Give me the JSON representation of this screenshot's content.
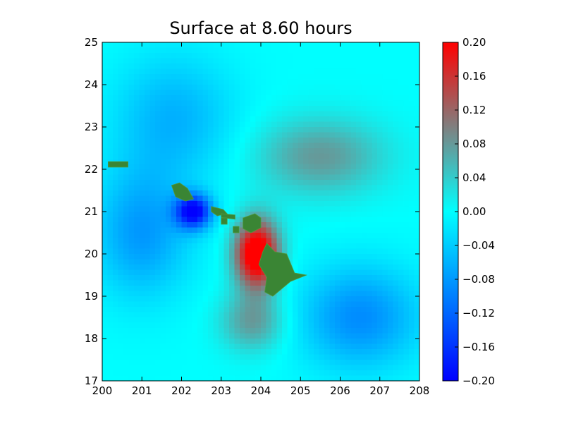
{
  "chart_data": {
    "type": "heatmap",
    "title": "Surface at 8.60 hours",
    "xlabel": "",
    "ylabel": "",
    "xlim": [
      200,
      208
    ],
    "ylim": [
      17,
      25
    ],
    "x_ticks": [
      "200",
      "201",
      "202",
      "203",
      "204",
      "205",
      "206",
      "207",
      "208"
    ],
    "y_ticks": [
      "17",
      "18",
      "19",
      "20",
      "21",
      "22",
      "23",
      "24",
      "25"
    ],
    "colorbar": {
      "min": -0.2,
      "max": 0.2,
      "ticks": [
        "−0.20",
        "−0.16",
        "−0.12",
        "−0.08",
        "−0.04",
        "0.00",
        "0.04",
        "0.08",
        "0.12",
        "0.16",
        "0.20"
      ],
      "colors": [
        "#0000ff",
        "#00ffff",
        "#ff0000"
      ]
    },
    "land_color": "#3a8534",
    "features": [
      {
        "name": "positive-peak",
        "x": 203.9,
        "y": 20.0,
        "sx": 0.55,
        "sy": 0.8,
        "amp": 0.25
      },
      {
        "name": "positive-ne-lobe",
        "x": 205.5,
        "y": 22.3,
        "sx": 1.6,
        "sy": 0.9,
        "amp": 0.08
      },
      {
        "name": "positive-s-lobe",
        "x": 203.8,
        "y": 18.4,
        "sx": 0.8,
        "sy": 0.7,
        "amp": 0.08
      },
      {
        "name": "negative-peak",
        "x": 202.3,
        "y": 21.0,
        "sx": 0.45,
        "sy": 0.4,
        "amp": -0.2
      },
      {
        "name": "negative-w-lobe",
        "x": 201.0,
        "y": 20.5,
        "sx": 1.2,
        "sy": 1.5,
        "amp": -0.08
      },
      {
        "name": "negative-se-lobe",
        "x": 206.5,
        "y": 18.5,
        "sx": 1.5,
        "sy": 1.2,
        "amp": -0.09
      },
      {
        "name": "negative-n-lobe",
        "x": 201.8,
        "y": 23.2,
        "sx": 1.5,
        "sy": 1.5,
        "amp": -0.06
      }
    ],
    "islands": [
      {
        "name": "niihau",
        "points": [
          [
            200.15,
            22.18
          ],
          [
            200.65,
            22.18
          ],
          [
            200.65,
            22.05
          ],
          [
            200.15,
            22.05
          ]
        ]
      },
      {
        "name": "kauai",
        "points": [
          [
            201.75,
            21.62
          ],
          [
            201.95,
            21.68
          ],
          [
            202.15,
            21.55
          ],
          [
            202.3,
            21.3
          ],
          [
            202.1,
            21.25
          ],
          [
            201.85,
            21.35
          ]
        ]
      },
      {
        "name": "oahu",
        "points": [
          [
            202.75,
            21.12
          ],
          [
            203.05,
            21.05
          ],
          [
            203.15,
            20.95
          ],
          [
            202.9,
            20.9
          ],
          [
            202.75,
            21.0
          ]
        ]
      },
      {
        "name": "molokai",
        "points": [
          [
            203.0,
            20.95
          ],
          [
            203.35,
            20.92
          ],
          [
            203.35,
            20.82
          ],
          [
            203.0,
            20.86
          ]
        ]
      },
      {
        "name": "lanai",
        "points": [
          [
            203.0,
            20.85
          ],
          [
            203.15,
            20.85
          ],
          [
            203.15,
            20.7
          ],
          [
            203.0,
            20.7
          ]
        ]
      },
      {
        "name": "kahoolawe",
        "points": [
          [
            203.3,
            20.65
          ],
          [
            203.45,
            20.65
          ],
          [
            203.45,
            20.5
          ],
          [
            203.3,
            20.5
          ]
        ]
      },
      {
        "name": "maui",
        "points": [
          [
            203.55,
            20.85
          ],
          [
            203.85,
            20.95
          ],
          [
            204.0,
            20.85
          ],
          [
            204.0,
            20.62
          ],
          [
            203.75,
            20.5
          ],
          [
            203.55,
            20.6
          ]
        ]
      },
      {
        "name": "hawaii",
        "points": [
          [
            204.15,
            20.25
          ],
          [
            204.35,
            20.05
          ],
          [
            204.65,
            20.0
          ],
          [
            204.85,
            19.55
          ],
          [
            205.15,
            19.5
          ],
          [
            204.75,
            19.35
          ],
          [
            204.3,
            19.0
          ],
          [
            204.1,
            19.1
          ],
          [
            204.15,
            19.45
          ],
          [
            203.95,
            19.75
          ],
          [
            204.05,
            20.05
          ]
        ]
      }
    ]
  }
}
